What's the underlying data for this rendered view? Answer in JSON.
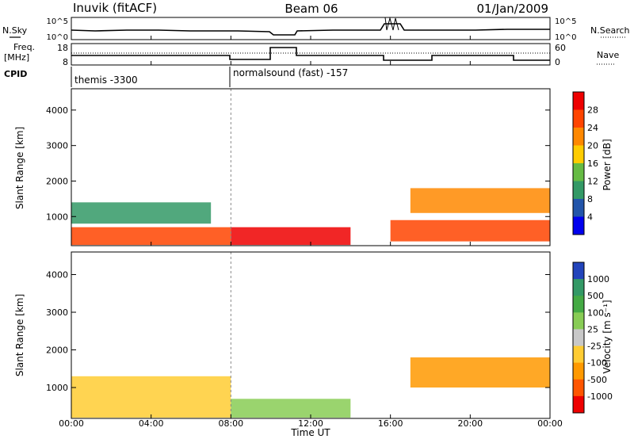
{
  "header": {
    "station": "Inuvik (fitACF)",
    "beam": "Beam 06",
    "date": "01/Jan/2009"
  },
  "top_panels": {
    "nsky_label": "N.Sky",
    "nsky_ticks": [
      "10^5",
      "10^0"
    ],
    "nsearch_label": "N.Search",
    "nsearch_ticks": [
      "10^5",
      "10^0"
    ],
    "freq_label_line1": "Freq.",
    "freq_label_line2": "[MHz]",
    "freq_ticks": [
      "18",
      "8"
    ],
    "nave_label": "Nave",
    "nave_ticks": [
      "60",
      "0"
    ],
    "cpid_label": "CPID",
    "cpid_segments": [
      {
        "label": "themis -3300",
        "start_hour": 0,
        "end_hour": 8
      },
      {
        "label": "normalsound (fast) -157",
        "start_hour": 8,
        "end_hour": 24
      }
    ]
  },
  "chart_data": [
    {
      "type": "heatmap",
      "title": "",
      "xlabel": "Time UT",
      "ylabel": "Slant Range [km]",
      "xlim": [
        0,
        24
      ],
      "ylim": [
        180,
        4600
      ],
      "x_ticks": [
        "00:00",
        "04:00",
        "08:00",
        "12:00",
        "16:00",
        "20:00",
        "00:00"
      ],
      "y_ticks": [
        "1000",
        "2000",
        "3000",
        "4000"
      ],
      "colorbar_label": "Power [dB]",
      "colorbar_ticks": [
        "28",
        "24",
        "20",
        "16",
        "12",
        "8",
        "4"
      ],
      "colorbar_colors": [
        "#ee0000",
        "#ff4400",
        "#ff8800",
        "#ffcc00",
        "#66bb44",
        "#339966",
        "#2255aa",
        "#0000ee"
      ],
      "echo_regions": [
        {
          "x0": 0,
          "x1": 8,
          "y0": 200,
          "y1": 700,
          "level": 1
        },
        {
          "x0": 8,
          "x1": 14,
          "y0": 200,
          "y1": 700,
          "level": 0
        },
        {
          "x0": 16,
          "x1": 24,
          "y0": 300,
          "y1": 900,
          "level": 1
        },
        {
          "x0": 17,
          "x1": 24,
          "y0": 1100,
          "y1": 1800,
          "level": 2
        },
        {
          "x0": 0,
          "x1": 7,
          "y0": 800,
          "y1": 1400,
          "level": 5
        }
      ]
    },
    {
      "type": "heatmap",
      "title": "",
      "xlabel": "Time UT",
      "ylabel": "Slant Range [km]",
      "xlim": [
        0,
        24
      ],
      "ylim": [
        180,
        4600
      ],
      "x_ticks": [
        "00:00",
        "04:00",
        "08:00",
        "12:00",
        "16:00",
        "20:00",
        "00:00"
      ],
      "y_ticks": [
        "1000",
        "2000",
        "3000",
        "4000"
      ],
      "colorbar_label": "Velocity [m s⁻¹]",
      "colorbar_ticks": [
        "1000",
        "500",
        "100",
        "25",
        "-25",
        "-100",
        "-500",
        "-1000"
      ],
      "colorbar_colors": [
        "#2244bb",
        "#339966",
        "#44aa44",
        "#88cc55",
        "#c8c8c8",
        "#ffcc33",
        "#ff9900",
        "#ff5500",
        "#ee0000"
      ],
      "echo_regions": [
        {
          "x0": 0,
          "x1": 8,
          "y0": 200,
          "y1": 1300,
          "level": 5
        },
        {
          "x0": 8,
          "x1": 14,
          "y0": 200,
          "y1": 700,
          "level": 3
        },
        {
          "x0": 17,
          "x1": 24,
          "y0": 1000,
          "y1": 1800,
          "level": 6
        }
      ]
    }
  ]
}
